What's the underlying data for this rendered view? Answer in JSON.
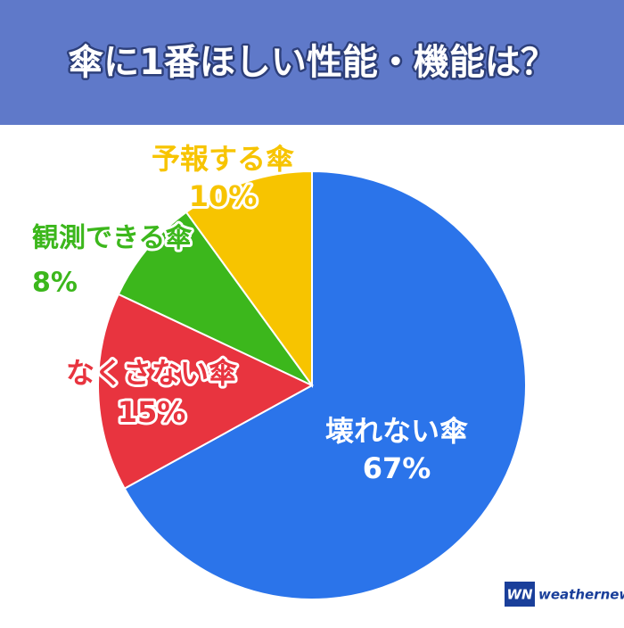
{
  "chart_data": {
    "type": "pie",
    "title": "傘に1番ほしい性能・機能は？",
    "categories": [
      "壊れない傘",
      "なくさない傘",
      "観測できる傘",
      "予報する傘"
    ],
    "values": [
      67,
      15,
      8,
      10
    ],
    "value_labels": [
      "67%",
      "15%",
      "8%",
      "10%"
    ],
    "colors": [
      "#2b74ea",
      "#e8343f",
      "#3cb71c",
      "#f7c400"
    ]
  },
  "brand": {
    "logo": "WN",
    "name": "weathernews"
  }
}
